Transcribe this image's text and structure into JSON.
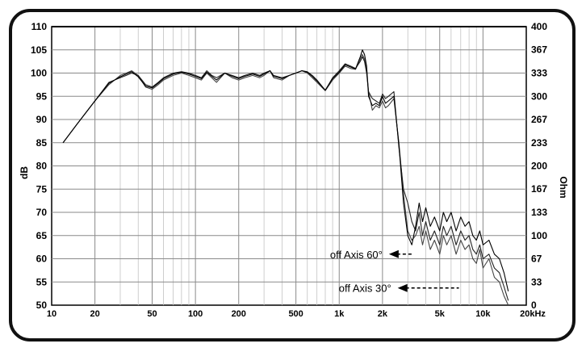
{
  "chart_data": {
    "type": "line",
    "x_scale": "log",
    "xlim": [
      10,
      20000
    ],
    "ylim": [
      50,
      110
    ],
    "y2lim": [
      0,
      400
    ],
    "ylabel": "dB",
    "y2label": "Ohm",
    "grid": true,
    "x_ticks": [
      {
        "v": 10,
        "t": "10"
      },
      {
        "v": 20,
        "t": "20"
      },
      {
        "v": 50,
        "t": "50"
      },
      {
        "v": 100,
        "t": "100"
      },
      {
        "v": 200,
        "t": "200"
      },
      {
        "v": 500,
        "t": "500"
      },
      {
        "v": 1000,
        "t": "1k"
      },
      {
        "v": 2000,
        "t": "2k"
      },
      {
        "v": 5000,
        "t": "5k"
      },
      {
        "v": 10000,
        "t": "10k"
      },
      {
        "v": 20000,
        "t": "20kHz"
      }
    ],
    "y_ticks": [
      "50",
      "55",
      "60",
      "65",
      "70",
      "75",
      "80",
      "85",
      "90",
      "95",
      "100",
      "105",
      "110"
    ],
    "y_tick_values": [
      50,
      55,
      60,
      65,
      70,
      75,
      80,
      85,
      90,
      95,
      100,
      105,
      110
    ],
    "y2_ticks": [
      "0",
      "33",
      "67",
      "100",
      "133",
      "167",
      "200",
      "233",
      "267",
      "300",
      "333",
      "367",
      "400"
    ],
    "y2_tick_values": [
      0,
      33.3,
      66.7,
      100,
      133.3,
      166.7,
      200,
      233.3,
      266.7,
      300,
      333.3,
      366.7,
      400
    ],
    "annotations": [
      {
        "text": "off Axis 60°",
        "x": 2000,
        "y": 61,
        "target_x": 3300
      },
      {
        "text": "off Axis 30°",
        "x": 2300,
        "y": 53.7,
        "target_x": 6800
      }
    ],
    "series": [
      {
        "x": [
          12,
          15,
          20,
          25,
          30,
          33,
          36,
          40,
          45,
          50,
          55,
          60,
          70,
          80,
          90,
          100,
          110,
          120,
          130,
          140,
          160,
          180,
          200,
          220,
          250,
          280,
          300,
          330,
          350,
          400,
          450,
          500,
          550,
          600,
          650,
          700,
          800,
          900,
          1000,
          1100,
          1200,
          1300,
          1400,
          1450,
          1500,
          1550,
          1600,
          1700,
          1800,
          1900,
          2000,
          2100,
          2200,
          2400,
          2600,
          2800,
          3000,
          3200,
          3400,
          3600,
          3800,
          4000,
          4300,
          4600,
          5000,
          5300,
          5600,
          6000,
          6500,
          7000,
          7500,
          8000,
          8500,
          9000,
          9500,
          10000,
          11000,
          12000,
          13000,
          14000,
          15000
        ],
        "y": [
          85,
          89,
          94,
          97.5,
          99.5,
          100,
          100.5,
          99.5,
          97,
          96.5,
          97.5,
          98.5,
          99.5,
          100,
          99.5,
          99,
          98.5,
          100,
          99,
          98,
          100,
          99,
          98.5,
          99,
          99.5,
          99,
          99.5,
          100.5,
          99,
          98.5,
          99.5,
          100,
          100.5,
          100,
          99,
          98,
          96.2,
          98.5,
          100,
          101.5,
          101,
          100.8,
          103,
          104,
          103,
          101,
          96,
          92,
          93,
          92.5,
          94,
          92.5,
          93,
          94.5,
          85,
          74,
          66,
          64,
          65,
          67,
          63,
          66,
          62,
          64,
          61,
          65,
          63,
          65,
          61,
          64,
          62,
          63,
          60,
          59,
          62,
          58,
          60,
          56,
          55,
          52,
          50
        ]
      },
      {
        "x": [
          12,
          15,
          20,
          25,
          30,
          33,
          36,
          40,
          45,
          50,
          55,
          60,
          70,
          80,
          90,
          100,
          110,
          120,
          130,
          140,
          160,
          180,
          200,
          220,
          250,
          280,
          300,
          330,
          350,
          400,
          450,
          500,
          550,
          600,
          650,
          700,
          800,
          900,
          1000,
          1100,
          1200,
          1300,
          1400,
          1450,
          1500,
          1550,
          1600,
          1700,
          1800,
          1900,
          2000,
          2100,
          2200,
          2400,
          2600,
          2800,
          3000,
          3200,
          3400,
          3600,
          3800,
          4000,
          4300,
          4600,
          5000,
          5300,
          5600,
          6000,
          6500,
          7000,
          7500,
          8000,
          8500,
          9000,
          9500,
          10000,
          11000,
          12000,
          13000,
          14000,
          15000
        ],
        "y": [
          85,
          89,
          94,
          98,
          99,
          99.5,
          100,
          99.5,
          97.5,
          97,
          98,
          99,
          100,
          100.3,
          100,
          99.5,
          99,
          100.5,
          99.5,
          99,
          100,
          99.5,
          99,
          99.5,
          100,
          99.5,
          100,
          100.5,
          99.5,
          99,
          99.5,
          100,
          100.5,
          100.3,
          99.5,
          98.5,
          96.3,
          99,
          100.5,
          102,
          101.5,
          101,
          102.5,
          103.5,
          102.5,
          100,
          96,
          94.5,
          94,
          93.5,
          95.5,
          94.5,
          95,
          96,
          84,
          75,
          72,
          68,
          66,
          70,
          65,
          68,
          64,
          66,
          63,
          67,
          65,
          67,
          63,
          66,
          64,
          65,
          62,
          61,
          63,
          60,
          61,
          58,
          57,
          54,
          51
        ]
      },
      {
        "x": [
          12,
          15,
          20,
          25,
          30,
          33,
          36,
          40,
          45,
          50,
          55,
          60,
          70,
          80,
          90,
          100,
          110,
          120,
          130,
          140,
          160,
          180,
          200,
          220,
          250,
          280,
          300,
          330,
          350,
          400,
          450,
          500,
          550,
          600,
          650,
          700,
          800,
          900,
          1000,
          1100,
          1200,
          1300,
          1400,
          1450,
          1500,
          1550,
          1600,
          1700,
          1800,
          1900,
          2000,
          2100,
          2200,
          2400,
          2600,
          2800,
          3000,
          3200,
          3400,
          3600,
          3800,
          4000,
          4300,
          4600,
          5000,
          5300,
          5600,
          6000,
          6500,
          7000,
          7500,
          8000,
          8500,
          9000,
          9500,
          10000,
          11000,
          12000,
          13000,
          14000,
          15000
        ],
        "y": [
          85,
          89,
          94,
          97.8,
          99.2,
          99.8,
          100.3,
          99.2,
          97.2,
          96.8,
          97.8,
          98.8,
          99.8,
          100.2,
          99.8,
          99.3,
          98.8,
          100.2,
          99.3,
          98.5,
          100,
          99.3,
          98.8,
          99.3,
          99.8,
          99.3,
          99.8,
          100.5,
          99.3,
          98.8,
          99.5,
          100,
          100.5,
          100.2,
          99.3,
          98.3,
          96.3,
          98.8,
          100.2,
          101.8,
          101.3,
          100.9,
          103.5,
          105,
          104,
          101.5,
          95,
          93,
          93.5,
          93,
          95,
          93.5,
          94,
          95,
          84.5,
          72,
          65,
          63,
          67,
          72,
          68,
          71,
          67,
          69,
          66,
          70,
          68,
          70,
          66,
          69,
          67,
          68,
          65,
          64,
          66,
          63,
          64,
          61,
          60,
          57,
          53
        ]
      }
    ]
  }
}
